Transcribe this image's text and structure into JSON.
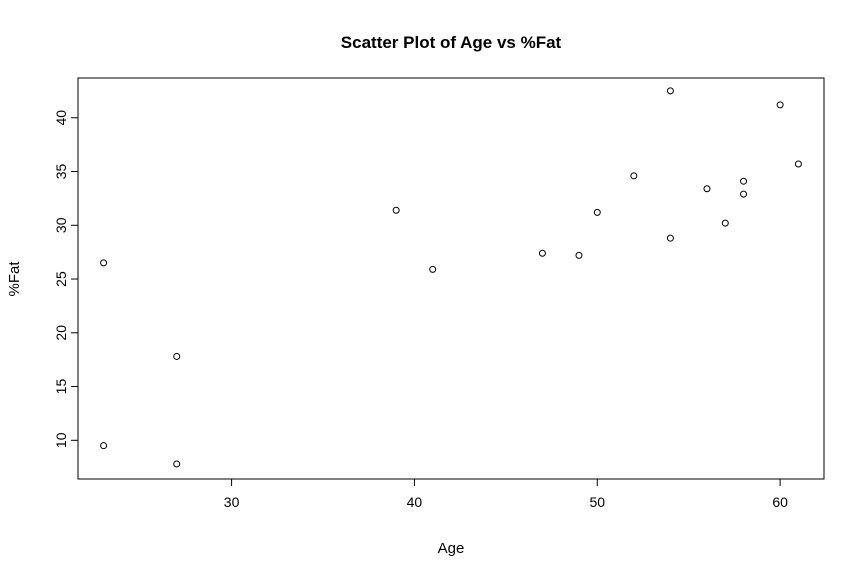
{
  "chart_data": {
    "type": "scatter",
    "title": "Scatter Plot of Age vs %Fat",
    "xlabel": "Age",
    "ylabel": "%Fat",
    "xlim": [
      21.6,
      62.4
    ],
    "ylim": [
      6.4,
      43.7
    ],
    "x_ticks": [
      30,
      40,
      50,
      60
    ],
    "y_ticks": [
      10,
      15,
      20,
      25,
      30,
      35,
      40
    ],
    "grid": false,
    "marker": "open-circle",
    "color": "#000000",
    "points": [
      {
        "x": 23,
        "y": 9.5
      },
      {
        "x": 23,
        "y": 26.5
      },
      {
        "x": 27,
        "y": 7.8
      },
      {
        "x": 27,
        "y": 17.8
      },
      {
        "x": 39,
        "y": 31.4
      },
      {
        "x": 41,
        "y": 25.9
      },
      {
        "x": 47,
        "y": 27.4
      },
      {
        "x": 49,
        "y": 27.2
      },
      {
        "x": 50,
        "y": 31.2
      },
      {
        "x": 52,
        "y": 34.6
      },
      {
        "x": 54,
        "y": 42.5
      },
      {
        "x": 54,
        "y": 28.8
      },
      {
        "x": 56,
        "y": 33.4
      },
      {
        "x": 57,
        "y": 30.2
      },
      {
        "x": 58,
        "y": 34.1
      },
      {
        "x": 58,
        "y": 32.9
      },
      {
        "x": 60,
        "y": 41.2
      },
      {
        "x": 61,
        "y": 35.7
      }
    ]
  }
}
